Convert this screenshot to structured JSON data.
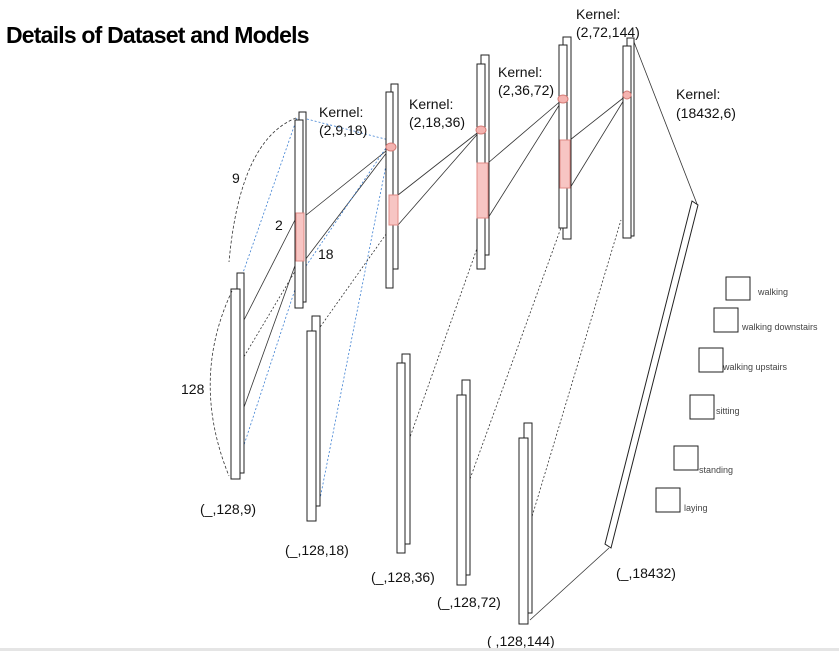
{
  "slide": {
    "title": "Details of Dataset and Models"
  },
  "diagram": {
    "kernels": [
      {
        "label": "Kernel:",
        "dims": "(2,9,18)"
      },
      {
        "label": "Kernel:",
        "dims": "(2,18,36)"
      },
      {
        "label": "Kernel:",
        "dims": "(2,36,72)"
      },
      {
        "label": "Kernel:",
        "dims": "(2,72,144)"
      },
      {
        "label": "Kernel:",
        "dims": "(18432,6)"
      }
    ],
    "shapes": [
      "(_,128,9)",
      "(_,128,18)",
      "(_,128,36)",
      "(_,128,72)",
      "( ,128,144)",
      "(_,18432)"
    ],
    "annotations": {
      "height": "128",
      "width": "9",
      "kernel_h": "2",
      "kernel_out": "18"
    },
    "classes": [
      "walking",
      "walking downstairs",
      "walking upstairs",
      "sitting",
      "standing",
      "laying"
    ]
  }
}
